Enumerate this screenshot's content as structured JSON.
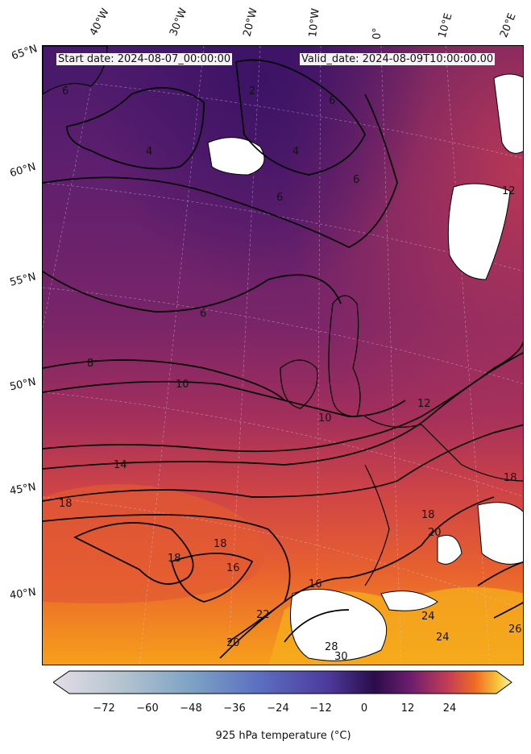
{
  "header": {
    "start_date": "Start date: 2024-08-07_00:00:00",
    "valid_date": "Valid_date: 2024-08-09T10:00:00.00"
  },
  "longitude_labels": [
    "40°W",
    "30°W",
    "20°W",
    "10°W",
    "0°",
    "10°E",
    "20°E"
  ],
  "latitude_labels": [
    "65°N",
    "60°N",
    "55°N",
    "50°N",
    "45°N",
    "40°N"
  ],
  "contour_labels": [
    "2",
    "4",
    "4",
    "6",
    "6",
    "6",
    "6",
    "6",
    "8",
    "10",
    "10",
    "12",
    "12",
    "14",
    "16",
    "16",
    "18",
    "18",
    "18",
    "18",
    "18",
    "20",
    "20",
    "22",
    "24",
    "24",
    "26",
    "28",
    "30"
  ],
  "colorbar": {
    "ticks": [
      "−72",
      "−60",
      "−48",
      "−36",
      "−24",
      "−12",
      "0",
      "12",
      "24"
    ],
    "tick_values": [
      -72,
      -60,
      -48,
      -36,
      -24,
      -12,
      0,
      12,
      24
    ],
    "range": [
      -84,
      32
    ],
    "label": "925 hPa temperature (°C)",
    "extend": "both",
    "colormap": "gray-blue-purple-inferno"
  },
  "colors": {
    "cold_north": "#4a1a6a",
    "mid": "#8a2a6a",
    "warm": "#d84a3a",
    "hot": "#f39a1a",
    "missing": "#ffffff"
  }
}
